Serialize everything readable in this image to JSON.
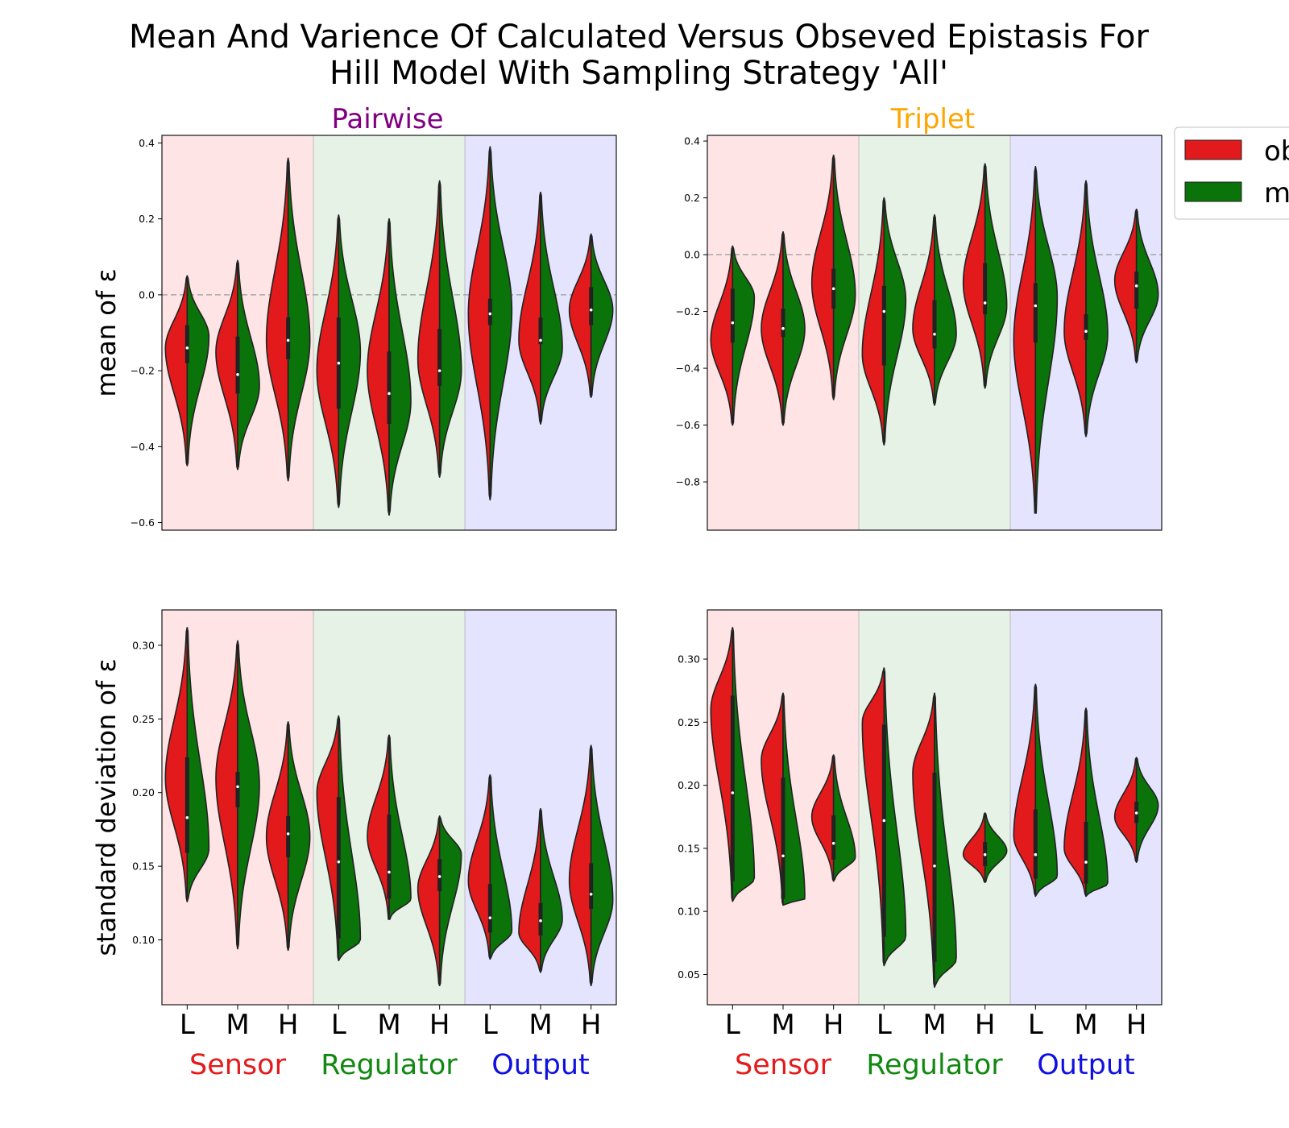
{
  "figure": {
    "title_line1": "Mean And Varience Of Calculated Versus Obseved Epistasis For",
    "title_line2": "Hill Model With Sampling Strategy 'All'"
  },
  "columns": [
    {
      "title": "Pairwise",
      "color": "#800080"
    },
    {
      "title": "Triplet",
      "color": "#ffa500"
    }
  ],
  "ylabels": {
    "mean": "mean of ε",
    "std": "standard deviation of ε"
  },
  "categories": [
    "L",
    "M",
    "H",
    "L",
    "M",
    "H",
    "L",
    "M",
    "H"
  ],
  "groups": [
    {
      "name": "Sensor",
      "color": "#e41a1c",
      "bg": "#ffe4e6"
    },
    {
      "name": "Regulator",
      "color": "#118811",
      "bg": "#e6f2e6"
    },
    {
      "name": "Output",
      "color": "#1010e0",
      "bg": "#e4e4ff"
    }
  ],
  "legend": [
    {
      "label": "ob",
      "color": "#e31a1c"
    },
    {
      "label": "m",
      "color": "#0a730a"
    }
  ],
  "colors": {
    "observed": "#e31a1c",
    "model": "#0a730a",
    "outline": "#222222"
  },
  "chart_data": [
    {
      "type": "violin",
      "panel": "Pairwise mean",
      "ylim": [
        -0.62,
        0.42
      ],
      "yticks": [
        -0.6,
        -0.4,
        -0.2,
        0.0,
        0.2,
        0.4
      ],
      "reference_line": 0.0,
      "series": [
        {
          "name": "observed",
          "side": "left",
          "groups": [
            {
              "min": -0.45,
              "max": 0.05,
              "mode": -0.14,
              "median": -0.14,
              "q1": -0.18,
              "q3": -0.08
            },
            {
              "min": -0.46,
              "max": 0.09,
              "mode": -0.15,
              "median": -0.21,
              "q1": -0.26,
              "q3": -0.11
            },
            {
              "min": -0.49,
              "max": 0.36,
              "mode": -0.12,
              "median": -0.12,
              "q1": -0.17,
              "q3": -0.06
            },
            {
              "min": -0.56,
              "max": 0.21,
              "mode": -0.2,
              "median": -0.18,
              "q1": -0.3,
              "q3": -0.06
            },
            {
              "min": -0.58,
              "max": 0.2,
              "mode": -0.2,
              "median": -0.26,
              "q1": -0.34,
              "q3": -0.15
            },
            {
              "min": -0.48,
              "max": 0.3,
              "mode": -0.17,
              "median": -0.2,
              "q1": -0.24,
              "q3": -0.09
            },
            {
              "min": -0.54,
              "max": 0.39,
              "mode": -0.05,
              "median": -0.05,
              "q1": -0.08,
              "q3": -0.01
            },
            {
              "min": -0.34,
              "max": 0.27,
              "mode": -0.12,
              "median": -0.12,
              "q1": -0.13,
              "q3": -0.06
            },
            {
              "min": -0.27,
              "max": 0.16,
              "mode": -0.04,
              "median": -0.04,
              "q1": -0.08,
              "q3": 0.02
            }
          ]
        },
        {
          "name": "model",
          "side": "right",
          "groups": [
            {
              "min": -0.45,
              "max": 0.05,
              "mode": -0.11,
              "median": -0.14,
              "q1": -0.18,
              "q3": -0.08
            },
            {
              "min": -0.46,
              "max": 0.09,
              "mode": -0.24,
              "median": -0.21,
              "q1": -0.26,
              "q3": -0.11
            },
            {
              "min": -0.49,
              "max": 0.36,
              "mode": -0.12,
              "median": -0.12,
              "q1": -0.17,
              "q3": -0.06
            },
            {
              "min": -0.56,
              "max": 0.21,
              "mode": -0.15,
              "median": -0.18,
              "q1": -0.3,
              "q3": -0.06
            },
            {
              "min": -0.58,
              "max": 0.2,
              "mode": -0.28,
              "median": -0.26,
              "q1": -0.34,
              "q3": -0.15
            },
            {
              "min": -0.48,
              "max": 0.3,
              "mode": -0.2,
              "median": -0.2,
              "q1": -0.24,
              "q3": -0.09
            },
            {
              "min": -0.54,
              "max": 0.39,
              "mode": -0.04,
              "median": -0.05,
              "q1": -0.08,
              "q3": -0.01
            },
            {
              "min": -0.34,
              "max": 0.27,
              "mode": -0.14,
              "median": -0.12,
              "q1": -0.13,
              "q3": -0.06
            },
            {
              "min": -0.27,
              "max": 0.16,
              "mode": -0.04,
              "median": -0.04,
              "q1": -0.08,
              "q3": 0.02
            }
          ]
        }
      ]
    },
    {
      "type": "violin",
      "panel": "Triplet mean",
      "ylim": [
        -0.97,
        0.42
      ],
      "yticks": [
        -0.8,
        -0.6,
        -0.4,
        -0.2,
        0.0,
        0.2,
        0.4
      ],
      "reference_line": 0.0,
      "series": [
        {
          "name": "observed",
          "side": "left",
          "groups": [
            {
              "min": -0.6,
              "max": 0.03,
              "mode": -0.3,
              "median": -0.24,
              "q1": -0.31,
              "q3": -0.12
            },
            {
              "min": -0.6,
              "max": 0.08,
              "mode": -0.26,
              "median": -0.26,
              "q1": -0.29,
              "q3": -0.19
            },
            {
              "min": -0.51,
              "max": 0.35,
              "mode": -0.1,
              "median": -0.12,
              "q1": -0.19,
              "q3": -0.05
            },
            {
              "min": -0.67,
              "max": 0.2,
              "mode": -0.35,
              "median": -0.2,
              "q1": -0.39,
              "q3": -0.11
            },
            {
              "min": -0.53,
              "max": 0.14,
              "mode": -0.26,
              "median": -0.28,
              "q1": -0.33,
              "q3": -0.16
            },
            {
              "min": -0.47,
              "max": 0.32,
              "mode": -0.1,
              "median": -0.17,
              "q1": -0.21,
              "q3": -0.03
            },
            {
              "min": -0.91,
              "max": 0.31,
              "mode": -0.3,
              "median": -0.18,
              "q1": -0.31,
              "q3": -0.1
            },
            {
              "min": -0.64,
              "max": 0.26,
              "mode": -0.27,
              "median": -0.27,
              "q1": -0.3,
              "q3": -0.21
            },
            {
              "min": -0.38,
              "max": 0.16,
              "mode": -0.09,
              "median": -0.11,
              "q1": -0.19,
              "q3": -0.06
            }
          ]
        },
        {
          "name": "model",
          "side": "right",
          "groups": [
            {
              "min": -0.6,
              "max": 0.03,
              "mode": -0.15,
              "median": -0.24,
              "q1": -0.31,
              "q3": -0.12
            },
            {
              "min": -0.6,
              "max": 0.08,
              "mode": -0.26,
              "median": -0.26,
              "q1": -0.29,
              "q3": -0.19
            },
            {
              "min": -0.51,
              "max": 0.35,
              "mode": -0.14,
              "median": -0.12,
              "q1": -0.19,
              "q3": -0.05
            },
            {
              "min": -0.67,
              "max": 0.2,
              "mode": -0.16,
              "median": -0.2,
              "q1": -0.39,
              "q3": -0.11
            },
            {
              "min": -0.53,
              "max": 0.14,
              "mode": -0.28,
              "median": -0.28,
              "q1": -0.33,
              "q3": -0.16
            },
            {
              "min": -0.47,
              "max": 0.32,
              "mode": -0.18,
              "median": -0.17,
              "q1": -0.21,
              "q3": -0.03
            },
            {
              "min": -0.91,
              "max": 0.31,
              "mode": -0.15,
              "median": -0.18,
              "q1": -0.31,
              "q3": -0.1
            },
            {
              "min": -0.64,
              "max": 0.26,
              "mode": -0.28,
              "median": -0.27,
              "q1": -0.3,
              "q3": -0.21
            },
            {
              "min": -0.38,
              "max": 0.16,
              "mode": -0.14,
              "median": -0.11,
              "q1": -0.19,
              "q3": -0.06
            }
          ]
        }
      ]
    },
    {
      "type": "violin",
      "panel": "Pairwise standard deviation",
      "ylim": [
        0.056,
        0.324
      ],
      "yticks": [
        0.1,
        0.15,
        0.2,
        0.25,
        0.3
      ],
      "series": [
        {
          "name": "observed",
          "side": "left",
          "groups": [
            {
              "min": 0.126,
              "max": 0.312,
              "mode": 0.21,
              "median": 0.183,
              "q1": 0.159,
              "q3": 0.224
            },
            {
              "min": 0.094,
              "max": 0.303,
              "mode": 0.21,
              "median": 0.204,
              "q1": 0.19,
              "q3": 0.214
            },
            {
              "min": 0.093,
              "max": 0.248,
              "mode": 0.17,
              "median": 0.172,
              "q1": 0.156,
              "q3": 0.184
            },
            {
              "min": 0.086,
              "max": 0.252,
              "mode": 0.2,
              "median": 0.153,
              "q1": 0.101,
              "q3": 0.197
            },
            {
              "min": 0.114,
              "max": 0.239,
              "mode": 0.17,
              "median": 0.146,
              "q1": 0.128,
              "q3": 0.185
            },
            {
              "min": 0.069,
              "max": 0.184,
              "mode": 0.135,
              "median": 0.143,
              "q1": 0.133,
              "q3": 0.155
            },
            {
              "min": 0.087,
              "max": 0.212,
              "mode": 0.14,
              "median": 0.115,
              "q1": 0.105,
              "q3": 0.138
            },
            {
              "min": 0.078,
              "max": 0.189,
              "mode": 0.105,
              "median": 0.113,
              "q1": 0.103,
              "q3": 0.125
            },
            {
              "min": 0.069,
              "max": 0.232,
              "mode": 0.14,
              "median": 0.131,
              "q1": 0.121,
              "q3": 0.152
            }
          ]
        },
        {
          "name": "model",
          "side": "right",
          "groups": [
            {
              "min": 0.126,
              "max": 0.312,
              "mode": 0.162,
              "median": 0.183,
              "q1": 0.159,
              "q3": 0.224
            },
            {
              "min": 0.094,
              "max": 0.303,
              "mode": 0.205,
              "median": 0.204,
              "q1": 0.19,
              "q3": 0.214
            },
            {
              "min": 0.093,
              "max": 0.248,
              "mode": 0.17,
              "median": 0.172,
              "q1": 0.156,
              "q3": 0.184
            },
            {
              "min": 0.086,
              "max": 0.252,
              "mode": 0.1,
              "median": 0.153,
              "q1": 0.101,
              "q3": 0.197
            },
            {
              "min": 0.114,
              "max": 0.239,
              "mode": 0.128,
              "median": 0.146,
              "q1": 0.128,
              "q3": 0.185
            },
            {
              "min": 0.069,
              "max": 0.184,
              "mode": 0.158,
              "median": 0.143,
              "q1": 0.133,
              "q3": 0.155
            },
            {
              "min": 0.087,
              "max": 0.212,
              "mode": 0.106,
              "median": 0.115,
              "q1": 0.105,
              "q3": 0.138
            },
            {
              "min": 0.078,
              "max": 0.189,
              "mode": 0.114,
              "median": 0.113,
              "q1": 0.103,
              "q3": 0.125
            },
            {
              "min": 0.069,
              "max": 0.232,
              "mode": 0.127,
              "median": 0.131,
              "q1": 0.121,
              "q3": 0.152
            }
          ]
        }
      ]
    },
    {
      "type": "violin",
      "panel": "Triplet standard deviation",
      "ylim": [
        0.026,
        0.339
      ],
      "yticks": [
        0.05,
        0.1,
        0.15,
        0.2,
        0.25,
        0.3
      ],
      "series": [
        {
          "name": "observed",
          "side": "left",
          "groups": [
            {
              "min": 0.108,
              "max": 0.325,
              "mode": 0.26,
              "median": 0.194,
              "q1": 0.124,
              "q3": 0.271
            },
            {
              "min": 0.105,
              "max": 0.273,
              "mode": 0.22,
              "median": 0.144,
              "q1": 0.11,
              "q3": 0.206
            },
            {
              "min": 0.124,
              "max": 0.224,
              "mode": 0.175,
              "median": 0.154,
              "q1": 0.141,
              "q3": 0.176
            },
            {
              "min": 0.057,
              "max": 0.293,
              "mode": 0.25,
              "median": 0.172,
              "q1": 0.08,
              "q3": 0.248
            },
            {
              "min": 0.04,
              "max": 0.273,
              "mode": 0.21,
              "median": 0.136,
              "q1": 0.06,
              "q3": 0.21
            },
            {
              "min": 0.123,
              "max": 0.178,
              "mode": 0.145,
              "median": 0.145,
              "q1": 0.136,
              "q3": 0.155
            },
            {
              "min": 0.112,
              "max": 0.28,
              "mode": 0.16,
              "median": 0.145,
              "q1": 0.126,
              "q3": 0.181
            },
            {
              "min": 0.112,
              "max": 0.261,
              "mode": 0.15,
              "median": 0.139,
              "q1": 0.122,
              "q3": 0.171
            },
            {
              "min": 0.139,
              "max": 0.222,
              "mode": 0.175,
              "median": 0.178,
              "q1": 0.17,
              "q3": 0.187
            }
          ]
        },
        {
          "name": "model",
          "side": "right",
          "groups": [
            {
              "min": 0.108,
              "max": 0.325,
              "mode": 0.126,
              "median": 0.194,
              "q1": 0.124,
              "q3": 0.271
            },
            {
              "min": 0.105,
              "max": 0.273,
              "mode": 0.11,
              "median": 0.144,
              "q1": 0.11,
              "q3": 0.206
            },
            {
              "min": 0.124,
              "max": 0.224,
              "mode": 0.143,
              "median": 0.154,
              "q1": 0.141,
              "q3": 0.176
            },
            {
              "min": 0.057,
              "max": 0.293,
              "mode": 0.08,
              "median": 0.172,
              "q1": 0.08,
              "q3": 0.248
            },
            {
              "min": 0.04,
              "max": 0.273,
              "mode": 0.062,
              "median": 0.136,
              "q1": 0.06,
              "q3": 0.21
            },
            {
              "min": 0.123,
              "max": 0.178,
              "mode": 0.148,
              "median": 0.145,
              "q1": 0.136,
              "q3": 0.155
            },
            {
              "min": 0.112,
              "max": 0.28,
              "mode": 0.128,
              "median": 0.145,
              "q1": 0.126,
              "q3": 0.181
            },
            {
              "min": 0.112,
              "max": 0.261,
              "mode": 0.122,
              "median": 0.139,
              "q1": 0.122,
              "q3": 0.171
            },
            {
              "min": 0.139,
              "max": 0.222,
              "mode": 0.184,
              "median": 0.178,
              "q1": 0.17,
              "q3": 0.187
            }
          ]
        }
      ]
    }
  ]
}
